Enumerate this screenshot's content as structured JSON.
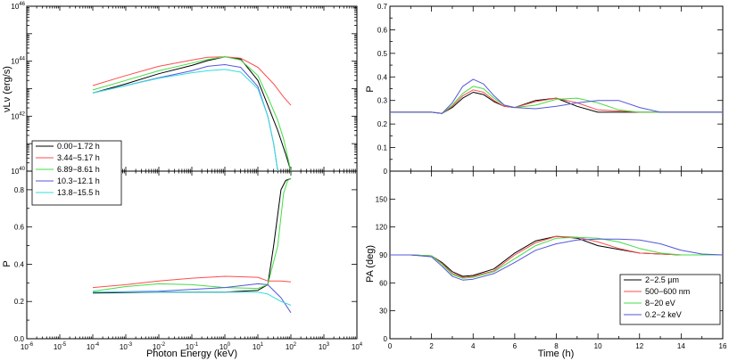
{
  "chart_data": [
    {
      "type": "line",
      "panel": "top-left",
      "ylabel": "νLν (erg/s)",
      "xscale": "log",
      "yscale": "log",
      "xlim_log10": [
        -6,
        4
      ],
      "ylim_log10": [
        40,
        46
      ],
      "legend_placement": "lower-left",
      "series": [
        {
          "name": "0.00−1.72 h",
          "color": "#000000",
          "x": [
            0.0001,
            0.001,
            0.01,
            0.1,
            0.3,
            1,
            3,
            10,
            20,
            40,
            70,
            100
          ],
          "y": [
            7e+42,
            1.5e+43,
            3.5e+43,
            7e+43,
            1.05e+44,
            1.45e+44,
            1.2e+44,
            2e+43,
            2.5e+42,
            3e+41,
            4e+40,
            1e+40
          ]
        },
        {
          "name": "3.44−5.17 h",
          "color": "#ff4d4d",
          "x": [
            0.0001,
            0.001,
            0.01,
            0.1,
            0.3,
            1,
            3,
            10,
            30,
            60,
            100
          ],
          "y": [
            1.3e+43,
            3e+43,
            6.5e+43,
            1.1e+44,
            1.4e+44,
            1.45e+44,
            1.3e+44,
            6e+43,
            1.5e+43,
            5e+42,
            2.5e+42
          ]
        },
        {
          "name": "6.89−8.61 h",
          "color": "#44dd44",
          "x": [
            0.0001,
            0.001,
            0.01,
            0.1,
            0.3,
            1,
            3,
            10,
            20,
            40,
            60,
            100
          ],
          "y": [
            9e+42,
            2e+43,
            4.5e+43,
            8.5e+43,
            1.15e+44,
            1.45e+44,
            1.1e+44,
            3e+43,
            5e+42,
            7e+41,
            1.5e+41,
            1e+40
          ]
        },
        {
          "name": "10.3−12.1 h",
          "color": "#5555dd",
          "x": [
            0.0001,
            0.001,
            0.01,
            0.1,
            0.3,
            1,
            3,
            10,
            20,
            30,
            40
          ],
          "y": [
            7e+42,
            1.3e+43,
            2.5e+43,
            4.5e+43,
            6.5e+43,
            7.5e+43,
            6e+43,
            1.2e+43,
            1e+42,
            1e+41,
            1e+40
          ]
        },
        {
          "name": "13.8−15.5 h",
          "color": "#33dddd",
          "x": [
            0.0001,
            0.001,
            0.01,
            0.1,
            0.3,
            1,
            3,
            10,
            20,
            30,
            40
          ],
          "y": [
            7e+42,
            1.3e+43,
            2.4e+43,
            3.8e+43,
            4.5e+43,
            5e+43,
            4e+43,
            1e+43,
            1e+42,
            1e+41,
            1e+40
          ]
        }
      ]
    },
    {
      "type": "line",
      "panel": "bottom-left",
      "xlabel": "Photon Energy (keV)",
      "ylabel": "P",
      "xscale": "log",
      "xlim_log10": [
        -6,
        4
      ],
      "ylim": [
        0,
        0.9
      ],
      "series": [
        {
          "name": "0.00−1.72 h",
          "color": "#000000",
          "x": [
            0.0001,
            0.01,
            1,
            10,
            20,
            30,
            50,
            70,
            100
          ],
          "y": [
            0.245,
            0.25,
            0.25,
            0.26,
            0.29,
            0.5,
            0.8,
            0.85,
            0.86
          ]
        },
        {
          "name": "3.44−5.17 h",
          "color": "#ff4d4d",
          "x": [
            0.0001,
            0.001,
            0.01,
            0.1,
            1,
            10,
            20,
            50,
            100
          ],
          "y": [
            0.275,
            0.29,
            0.31,
            0.325,
            0.335,
            0.33,
            0.31,
            0.31,
            0.305
          ]
        },
        {
          "name": "6.89−8.61 h",
          "color": "#44dd44",
          "x": [
            0.0001,
            0.001,
            0.01,
            0.1,
            1,
            10,
            20,
            40,
            60,
            80,
            100
          ],
          "y": [
            0.255,
            0.28,
            0.295,
            0.29,
            0.275,
            0.27,
            0.29,
            0.5,
            0.78,
            0.85,
            0.86
          ]
        },
        {
          "name": "10.3−12.1 h",
          "color": "#5555dd",
          "x": [
            0.0001,
            0.01,
            1,
            10,
            20,
            50,
            100
          ],
          "y": [
            0.25,
            0.255,
            0.275,
            0.295,
            0.29,
            0.22,
            0.14
          ]
        },
        {
          "name": "13.8−15.5 h",
          "color": "#33dddd",
          "x": [
            0.0001,
            0.01,
            1,
            10,
            20,
            50,
            100
          ],
          "y": [
            0.25,
            0.25,
            0.25,
            0.25,
            0.24,
            0.2,
            0.18
          ]
        }
      ]
    },
    {
      "type": "line",
      "panel": "top-right",
      "ylabel": "P",
      "xlim": [
        0,
        16
      ],
      "ylim": [
        0,
        0.7
      ],
      "series": [
        {
          "name": "2−2.5 µm",
          "color": "#000000",
          "x": [
            0,
            1,
            2,
            2.5,
            3,
            3.5,
            4,
            4.5,
            5,
            5.5,
            6,
            7,
            8,
            9,
            10,
            12,
            14,
            16
          ],
          "y": [
            0.25,
            0.25,
            0.25,
            0.245,
            0.27,
            0.31,
            0.335,
            0.325,
            0.295,
            0.275,
            0.27,
            0.3,
            0.31,
            0.275,
            0.25,
            0.25,
            0.25,
            0.25
          ]
        },
        {
          "name": "500−600 nm",
          "color": "#ff4d4d",
          "x": [
            0,
            1,
            2,
            2.5,
            3,
            3.5,
            4,
            4.5,
            5,
            5.5,
            6,
            7,
            8,
            9,
            10,
            12,
            14,
            16
          ],
          "y": [
            0.25,
            0.25,
            0.25,
            0.245,
            0.275,
            0.32,
            0.345,
            0.335,
            0.3,
            0.275,
            0.27,
            0.295,
            0.31,
            0.29,
            0.26,
            0.25,
            0.25,
            0.25
          ]
        },
        {
          "name": "8−20 eV",
          "color": "#44dd44",
          "x": [
            0,
            1,
            2,
            2.5,
            3,
            3.5,
            4,
            4.5,
            5,
            5.5,
            6,
            7,
            8,
            9,
            10,
            11,
            12,
            14,
            16
          ],
          "y": [
            0.25,
            0.25,
            0.25,
            0.245,
            0.28,
            0.33,
            0.36,
            0.35,
            0.31,
            0.28,
            0.27,
            0.28,
            0.305,
            0.31,
            0.29,
            0.26,
            0.25,
            0.25,
            0.25
          ]
        },
        {
          "name": "0.2−2 keV",
          "color": "#5555dd",
          "x": [
            0,
            1,
            2,
            2.5,
            3,
            3.5,
            4,
            4.5,
            5,
            5.5,
            6,
            7,
            8,
            9,
            10,
            11,
            12,
            13,
            14,
            16
          ],
          "y": [
            0.25,
            0.25,
            0.25,
            0.245,
            0.29,
            0.36,
            0.39,
            0.37,
            0.32,
            0.28,
            0.27,
            0.265,
            0.275,
            0.29,
            0.3,
            0.3,
            0.27,
            0.25,
            0.25,
            0.25
          ]
        }
      ]
    },
    {
      "type": "line",
      "panel": "bottom-right",
      "xlabel": "Time (h)",
      "ylabel": "PA (deg)",
      "xlim": [
        0,
        16
      ],
      "ylim": [
        0,
        180
      ],
      "legend_placement": "lower-right",
      "series": [
        {
          "name": "2−2.5 µm",
          "color": "#000000",
          "x": [
            0,
            1,
            2,
            2.5,
            3,
            3.5,
            4,
            5,
            6,
            7,
            8,
            9,
            10,
            12,
            14,
            16
          ],
          "y": [
            90,
            90,
            89,
            82,
            72,
            67,
            68,
            75,
            92,
            105,
            110,
            108,
            100,
            92,
            90,
            90
          ]
        },
        {
          "name": "500−600 nm",
          "color": "#ff4d4d",
          "x": [
            0,
            1,
            2,
            2.5,
            3,
            3.5,
            4,
            5,
            6,
            7,
            8,
            9,
            10,
            11,
            12,
            14,
            16
          ],
          "y": [
            90,
            90,
            89,
            81,
            70,
            66,
            67,
            73,
            90,
            103,
            110,
            109,
            104,
            97,
            92,
            90,
            90
          ]
        },
        {
          "name": "8−20 eV",
          "color": "#44dd44",
          "x": [
            0,
            1,
            2,
            2.5,
            3,
            3.5,
            4,
            5,
            6,
            7,
            8,
            9,
            10,
            11,
            12,
            13,
            14,
            16
          ],
          "y": [
            90,
            90,
            89,
            80,
            69,
            65,
            66,
            72,
            86,
            100,
            108,
            109,
            108,
            104,
            97,
            92,
            90,
            90
          ]
        },
        {
          "name": "0.2−2 keV",
          "color": "#5555dd",
          "x": [
            0,
            1,
            2,
            2.5,
            3,
            3.5,
            4,
            5,
            6,
            7,
            8,
            9,
            10,
            11,
            12,
            13,
            14,
            15,
            16
          ],
          "y": [
            90,
            90,
            88,
            78,
            67,
            63,
            64,
            70,
            82,
            95,
            102,
            106,
            107,
            107,
            106,
            102,
            95,
            91,
            90
          ]
        }
      ]
    }
  ],
  "panels": {
    "top_left": {
      "ylabel": "νLν (erg/s)",
      "yticks": [
        {
          "base": "10",
          "exp": "46"
        },
        {
          "base": "10",
          "exp": "44"
        },
        {
          "base": "10",
          "exp": "42"
        },
        {
          "base": "10",
          "exp": "40"
        }
      ]
    },
    "bottom_left": {
      "ylabel": "P",
      "xlabel": "Photon Energy (keV)",
      "yticks": [
        "0.8",
        "0.6",
        "0.4",
        "0.2",
        "0.0"
      ],
      "xticks": [
        {
          "base": "10",
          "exp": "-6"
        },
        {
          "base": "10",
          "exp": "-5"
        },
        {
          "base": "10",
          "exp": "-4"
        },
        {
          "base": "10",
          "exp": "-3"
        },
        {
          "base": "10",
          "exp": "-2"
        },
        {
          "base": "10",
          "exp": "-1"
        },
        {
          "base": "10",
          "exp": "0"
        },
        {
          "base": "10",
          "exp": "1"
        },
        {
          "base": "10",
          "exp": "2"
        },
        {
          "base": "10",
          "exp": "3"
        },
        {
          "base": "10",
          "exp": "4"
        }
      ]
    },
    "top_right": {
      "ylabel": "P",
      "yticks": [
        "0.7",
        "0.6",
        "0.5",
        "0.4",
        "0.3",
        "0.2",
        "0.1",
        "0"
      ]
    },
    "bottom_right": {
      "ylabel": "PA (deg)",
      "xlabel": "Time (h)",
      "yticks": [
        "150",
        "120",
        "90",
        "60",
        "30",
        "0"
      ],
      "xticks": [
        "0",
        "2",
        "4",
        "6",
        "8",
        "10",
        "12",
        "14",
        "16"
      ]
    }
  },
  "legends": {
    "left": [
      "0.00−1.72 h",
      "3.44−5.17 h",
      "6.89−8.61 h",
      "10.3−12.1 h",
      "13.8−15.5 h"
    ],
    "right": [
      "2−2.5 µm",
      "500−600 nm",
      "8−20 eV",
      "0.2−2 keV"
    ]
  }
}
